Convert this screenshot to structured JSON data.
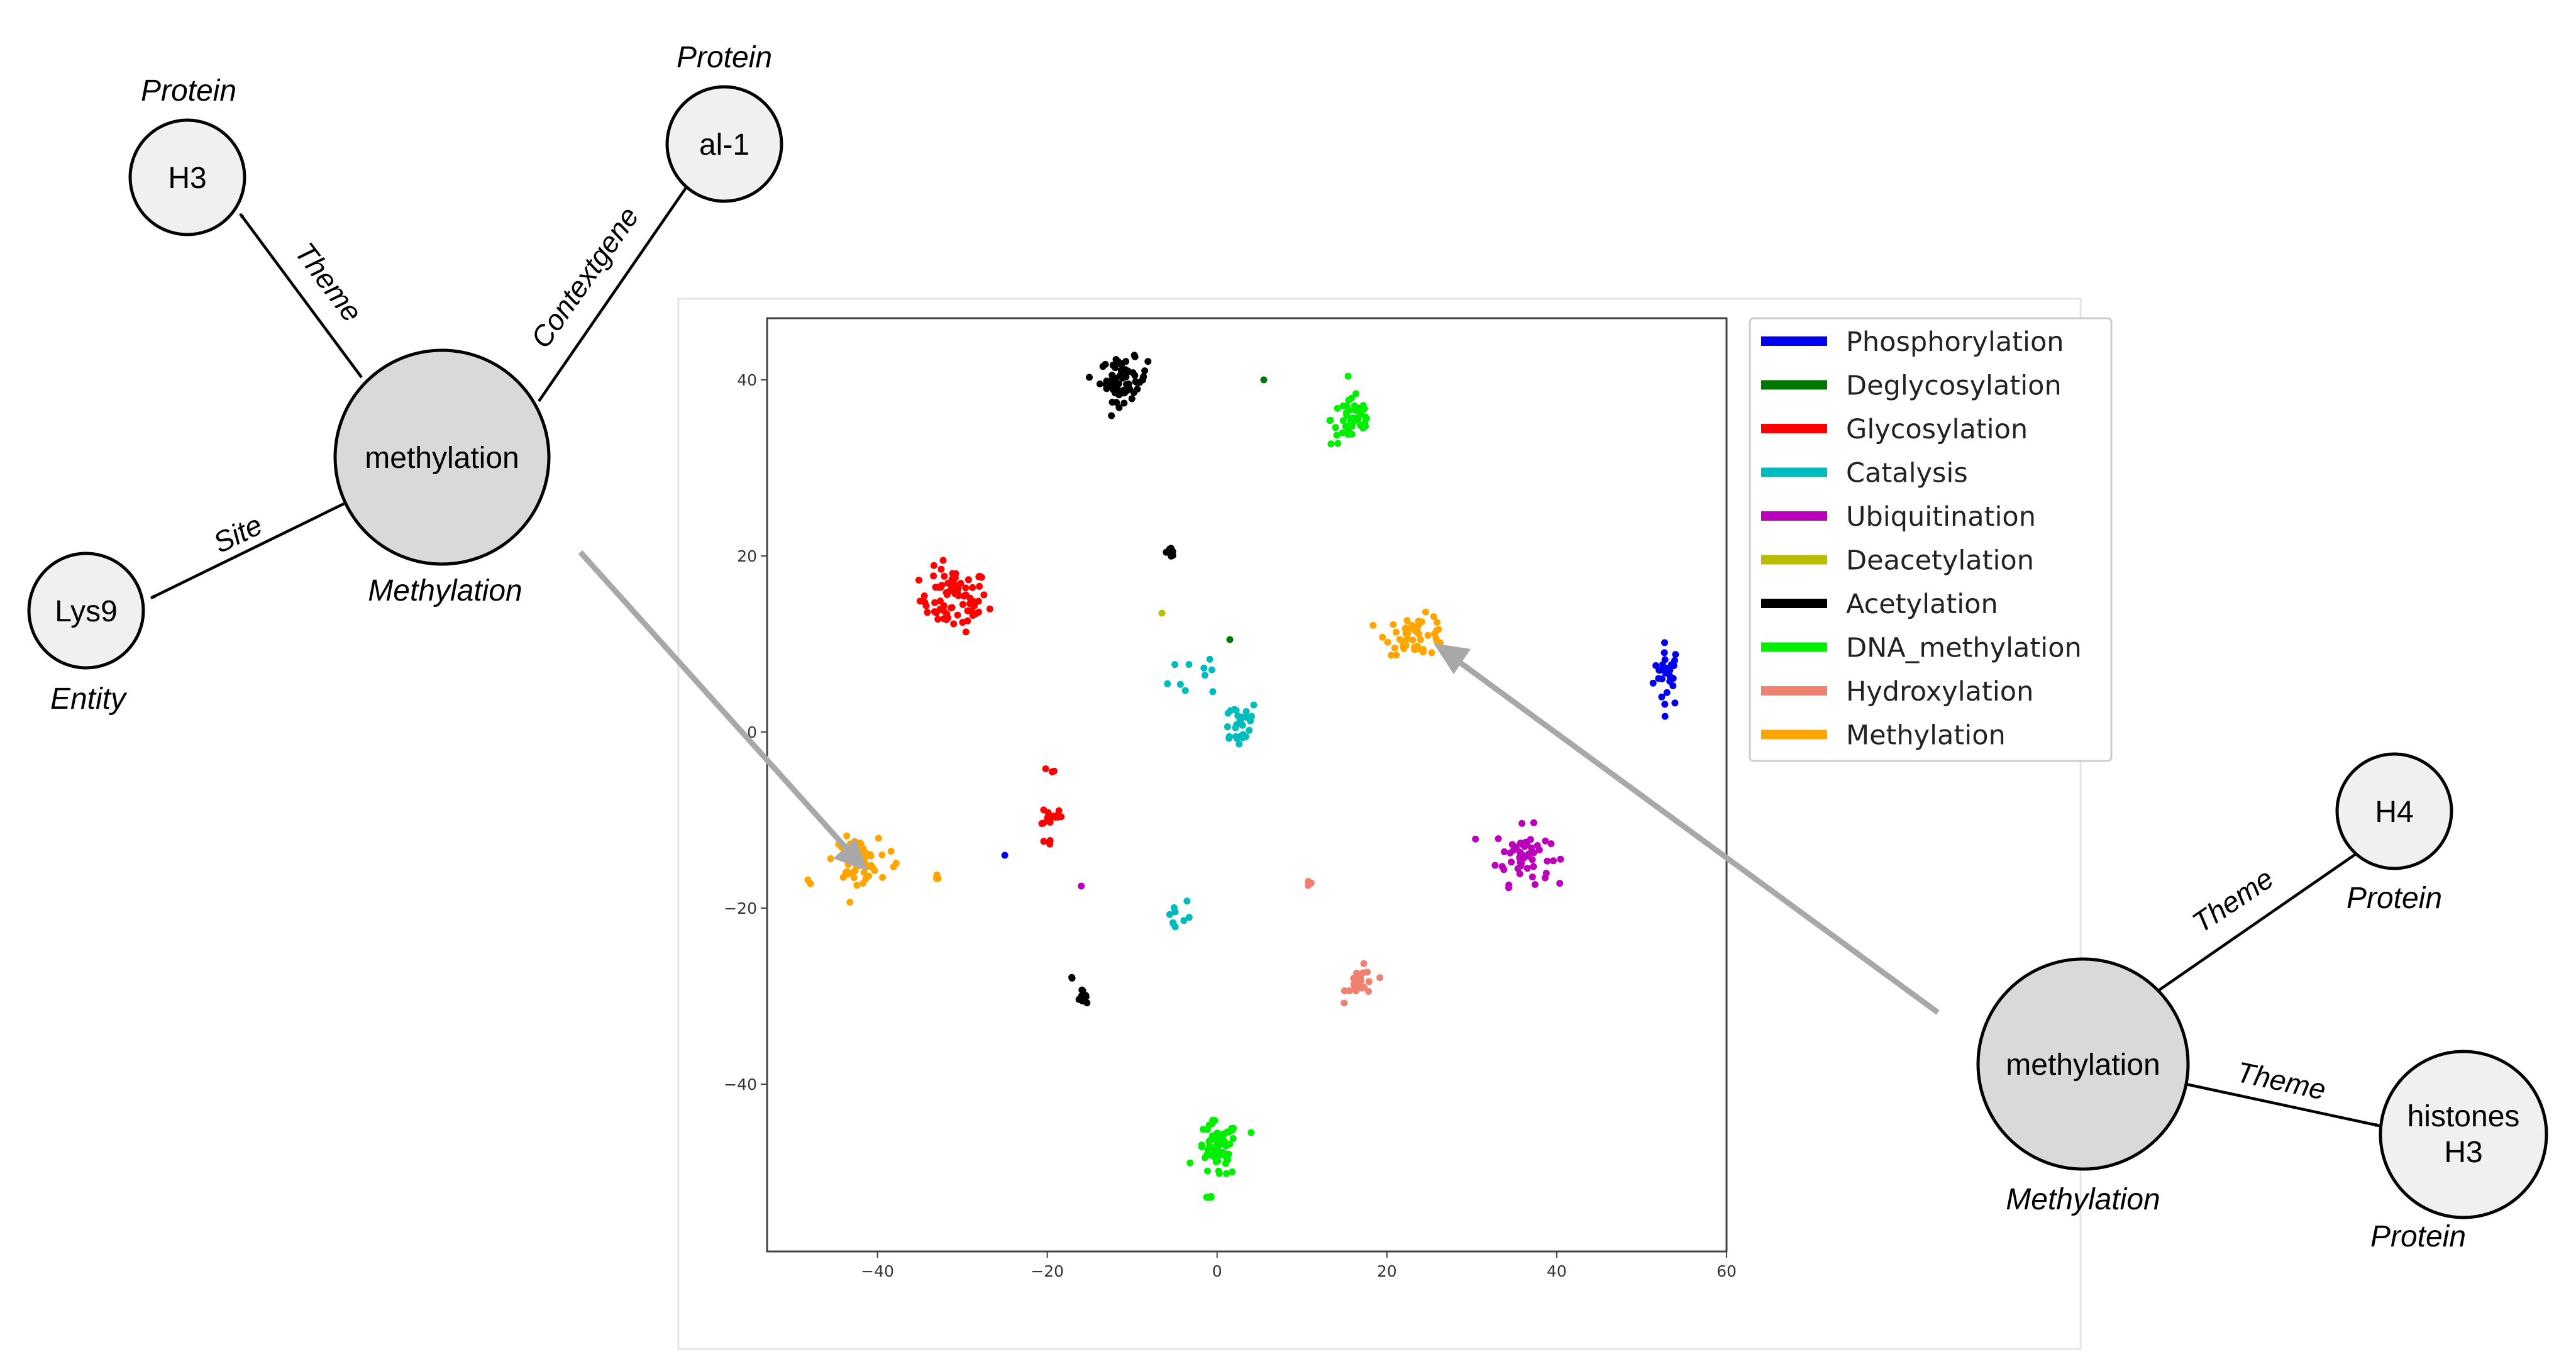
{
  "left_graph": {
    "center": {
      "label": "methylation",
      "type": "Methylation"
    },
    "nodes": [
      {
        "id": "h3",
        "label": "H3",
        "type": "Protein",
        "edge": "Theme"
      },
      {
        "id": "al1",
        "label": "al-1",
        "type": "Protein",
        "edge": "Contextgene"
      },
      {
        "id": "lys9",
        "label": "Lys9",
        "type": "Entity",
        "edge": "Site"
      }
    ]
  },
  "right_graph": {
    "center": {
      "label": "methylation",
      "type": "Methylation"
    },
    "nodes": [
      {
        "id": "h4",
        "label": "H4",
        "type": "Protein",
        "edge": "Theme"
      },
      {
        "id": "histones",
        "label_line1": "histones",
        "label_line2": "H3",
        "type": "Protein",
        "edge": "Theme"
      }
    ]
  },
  "chart_data": {
    "type": "scatter",
    "xlim": [
      -53,
      60
    ],
    "ylim": [
      -59,
      47
    ],
    "xticks": [
      -40,
      -20,
      0,
      20,
      40,
      60
    ],
    "yticks": [
      40,
      20,
      0,
      -20,
      -40
    ],
    "legend_position": "outside-right",
    "series": [
      {
        "name": "Phosphorylation",
        "color": "#0000ee",
        "clusters": [
          {
            "x": 53,
            "y": 6.5,
            "sx": 0.8,
            "sy": 1.8,
            "n": 28
          },
          {
            "x": -25,
            "y": -14,
            "sx": 0,
            "sy": 0,
            "n": 1
          }
        ]
      },
      {
        "name": "Deglycosylation",
        "color": "#007700",
        "clusters": [
          {
            "x": 1.5,
            "y": 10.5,
            "sx": 0,
            "sy": 0,
            "n": 1
          },
          {
            "x": 5.5,
            "y": 40,
            "sx": 0,
            "sy": 0,
            "n": 1
          }
        ]
      },
      {
        "name": "Glycosylation",
        "color": "#ff0000",
        "clusters": [
          {
            "x": -31,
            "y": 15,
            "sx": 2.0,
            "sy": 1.8,
            "n": 75
          },
          {
            "x": -19.5,
            "y": -9.5,
            "sx": 0.6,
            "sy": 0.6,
            "n": 14
          },
          {
            "x": -19.5,
            "y": -4.5,
            "sx": 0.3,
            "sy": 0.3,
            "n": 3
          },
          {
            "x": -20,
            "y": -12.5,
            "sx": 0.3,
            "sy": 0.3,
            "n": 3
          }
        ]
      },
      {
        "name": "Catalysis",
        "color": "#00bbbb",
        "clusters": [
          {
            "x": 2.5,
            "y": 1,
            "sx": 1.2,
            "sy": 1.4,
            "n": 30
          },
          {
            "x": -1.5,
            "y": 7,
            "sx": 2.0,
            "sy": 1.8,
            "n": 10
          },
          {
            "x": -5,
            "y": -21,
            "sx": 1.0,
            "sy": 1.2,
            "n": 9
          }
        ]
      },
      {
        "name": "Ubiquitination",
        "color": "#bb00bb",
        "clusters": [
          {
            "x": 36,
            "y": -14,
            "sx": 1.6,
            "sy": 1.6,
            "n": 55
          },
          {
            "x": -16,
            "y": -17.5,
            "sx": 0,
            "sy": 0,
            "n": 1
          }
        ]
      },
      {
        "name": "Deacetylation",
        "color": "#bbbb00",
        "clusters": [
          {
            "x": -6.5,
            "y": 13.5,
            "sx": 0,
            "sy": 0,
            "n": 1
          }
        ]
      },
      {
        "name": "Acetylation",
        "color": "#000000",
        "clusters": [
          {
            "x": -11,
            "y": 40,
            "sx": 1.4,
            "sy": 1.2,
            "n": 65
          },
          {
            "x": -5.5,
            "y": 20.5,
            "sx": 0.3,
            "sy": 0.3,
            "n": 10
          },
          {
            "x": -16,
            "y": -30,
            "sx": 0.3,
            "sy": 0.3,
            "n": 10
          },
          {
            "x": -17,
            "y": -28,
            "sx": 0.1,
            "sy": 0.1,
            "n": 2
          }
        ]
      },
      {
        "name": "DNA_methylation",
        "color": "#00ee00",
        "clusters": [
          {
            "x": 16,
            "y": 35.5,
            "sx": 1.3,
            "sy": 1.5,
            "n": 50
          },
          {
            "x": 0,
            "y": -47.5,
            "sx": 1.2,
            "sy": 1.6,
            "n": 60
          },
          {
            "x": -1,
            "y": -53,
            "sx": 0.3,
            "sy": 0.2,
            "n": 4
          },
          {
            "x": 4,
            "y": -45.5,
            "sx": 0,
            "sy": 0,
            "n": 1
          }
        ]
      },
      {
        "name": "Hydroxylation",
        "color": "#f08070",
        "clusters": [
          {
            "x": 17,
            "y": -28.5,
            "sx": 0.9,
            "sy": 0.9,
            "n": 24
          },
          {
            "x": 11,
            "y": -17,
            "sx": 0.25,
            "sy": 0.25,
            "n": 4
          }
        ]
      },
      {
        "name": "Methylation",
        "color": "#ffa500",
        "clusters": [
          {
            "x": 23.5,
            "y": 11,
            "sx": 1.8,
            "sy": 1.1,
            "n": 50
          },
          {
            "x": -42.5,
            "y": -14.5,
            "sx": 1.3,
            "sy": 1.2,
            "n": 60
          },
          {
            "x": -33,
            "y": -16.5,
            "sx": 0.3,
            "sy": 0.2,
            "n": 4
          },
          {
            "x": -48,
            "y": -17,
            "sx": 0.2,
            "sy": 0.2,
            "n": 2
          },
          {
            "x": -38,
            "y": -15,
            "sx": 0.3,
            "sy": 0.3,
            "n": 2
          }
        ]
      }
    ]
  }
}
